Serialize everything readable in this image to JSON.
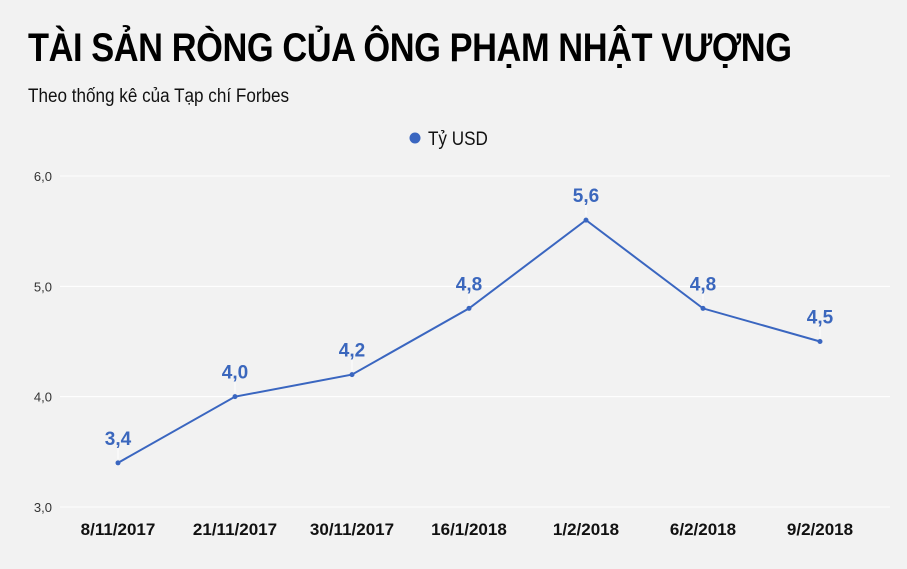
{
  "chart_data": {
    "type": "line",
    "title": "TÀI SẢN RÒNG CỦA ÔNG PHẠM NHẬT VƯỢNG",
    "subtitle": "Theo thống kê của Tạp chí Forbes",
    "categories": [
      "8/11/2017",
      "21/11/2017",
      "30/11/2017",
      "16/1/2018",
      "1/2/2018",
      "6/2/2018",
      "9/2/2018"
    ],
    "series": [
      {
        "name": "Tỷ USD",
        "values": [
          3.4,
          4.0,
          4.2,
          4.8,
          5.6,
          4.8,
          4.5
        ],
        "labels": [
          "3,4",
          "4,0",
          "4,2",
          "4,8",
          "5,6",
          "4,8",
          "4,5"
        ],
        "color": "#3a66c0"
      }
    ],
    "ylim": [
      3.0,
      6.0
    ],
    "yticks": [
      3.0,
      4.0,
      5.0,
      6.0
    ],
    "ytick_labels": [
      "3,0",
      "4,0",
      "5,0",
      "6,0"
    ],
    "grid": true,
    "legend": "top-center",
    "background": "#f2f2f2"
  }
}
